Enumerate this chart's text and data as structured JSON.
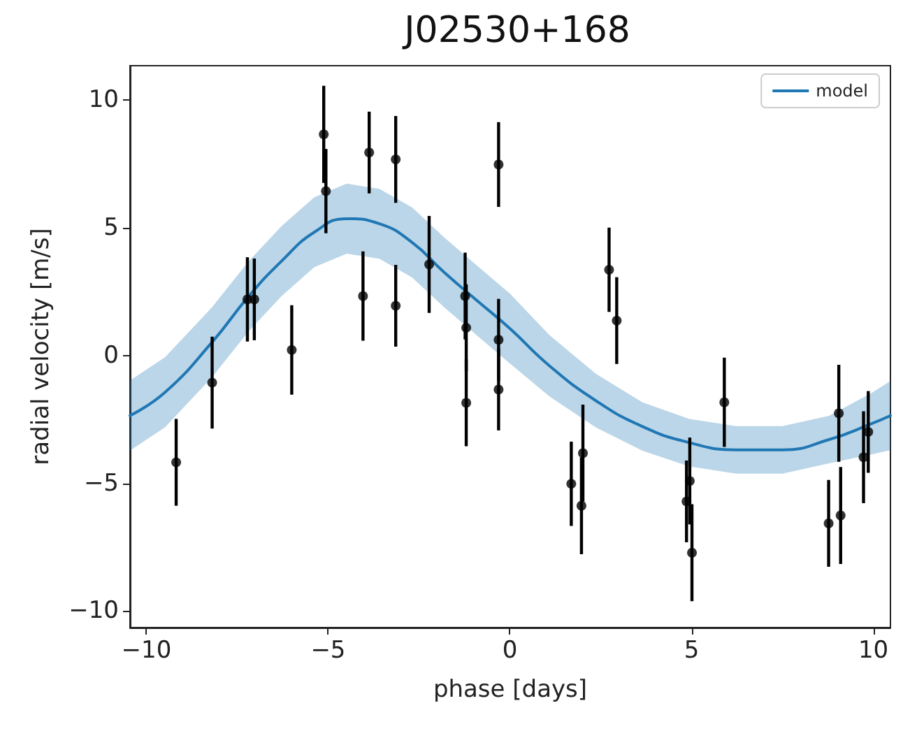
{
  "chart_data": {
    "type": "scatter",
    "title": "J02530+168",
    "xlabel": "phase [days]",
    "ylabel": "radial velocity [m/s]",
    "xlim": [
      -10.45,
      10.47
    ],
    "ylim": [
      -10.65,
      11.35
    ],
    "xticks": [
      {
        "value": -10,
        "label": "−10"
      },
      {
        "value": -5,
        "label": "−5"
      },
      0,
      5,
      10
    ],
    "yticks": [
      {
        "value": -10,
        "label": "−10"
      },
      {
        "value": -5,
        "label": "−5"
      },
      0,
      5,
      10
    ],
    "grid": false,
    "legend": "top right",
    "marker": "circle",
    "series": [
      {
        "color": "#000000",
        "x": [
          -9.18,
          -8.19,
          -7.22,
          -7.03,
          -6.0,
          -5.12,
          -5.06,
          -3.87,
          -4.04,
          -3.14,
          -3.14,
          -2.22,
          -1.23,
          -1.2,
          -1.2,
          -0.31,
          -0.31,
          -0.31,
          2.73,
          2.94,
          1.69,
          2.01,
          1.97,
          4.86,
          4.95,
          5.01,
          5.9,
          8.77,
          9.05,
          9.1,
          9.73,
          9.86
        ],
        "values": [
          -4.18,
          -1.06,
          2.2,
          2.2,
          0.22,
          8.66,
          6.44,
          7.95,
          2.33,
          7.68,
          1.95,
          3.57,
          2.33,
          1.09,
          -1.85,
          7.48,
          0.62,
          -1.33,
          3.36,
          1.37,
          -5.02,
          -3.82,
          -5.88,
          -5.71,
          -4.91,
          -7.72,
          -1.83,
          -6.57,
          -2.26,
          -6.26,
          -3.98,
          -2.99
        ],
        "errors": [
          1.7,
          1.8,
          1.65,
          1.6,
          1.75,
          1.9,
          1.65,
          1.6,
          1.75,
          1.7,
          1.6,
          1.9,
          1.7,
          1.7,
          1.7,
          1.66,
          1.6,
          1.6,
          1.65,
          1.7,
          1.65,
          1.9,
          1.9,
          1.6,
          1.7,
          1.9,
          1.75,
          1.7,
          1.9,
          1.9,
          1.8,
          1.6
        ]
      },
      {
        "type": "line",
        "name": "model",
        "color": "#1f77b4",
        "marker": "none",
        "line_style": "solid",
        "x": [
          -10.45,
          -9.49,
          -8.2,
          -7.18,
          -6.28,
          -5.38,
          -4.49,
          -3.59,
          -2.69,
          -1.8,
          -0.9,
          0,
          1.09,
          2.37,
          3.65,
          4.94,
          6.22,
          7.5,
          8.78,
          9.93,
          10.47
        ],
        "values": [
          -2.35,
          -1.44,
          0.51,
          2.33,
          3.7,
          4.83,
          5.36,
          5.16,
          4.43,
          3.25,
          2.15,
          1.06,
          -0.4,
          -1.77,
          -2.78,
          -3.41,
          -3.69,
          -3.69,
          -3.29,
          -2.68,
          -2.35
        ],
        "lower": [
          -3.72,
          -2.81,
          -0.86,
          0.96,
          2.33,
          3.46,
          3.99,
          3.79,
          3.06,
          1.88,
          0.78,
          -0.31,
          -1.6,
          -2.82,
          -3.73,
          -4.34,
          -4.62,
          -4.62,
          -4.22,
          -3.88,
          -3.7
        ],
        "upper": [
          -0.98,
          -0.07,
          1.88,
          3.7,
          5.07,
          6.2,
          6.73,
          6.53,
          5.8,
          4.62,
          3.52,
          2.43,
          0.8,
          -0.72,
          -1.83,
          -2.48,
          -2.76,
          -2.76,
          -2.36,
          -1.48,
          -1.0
        ]
      }
    ]
  }
}
